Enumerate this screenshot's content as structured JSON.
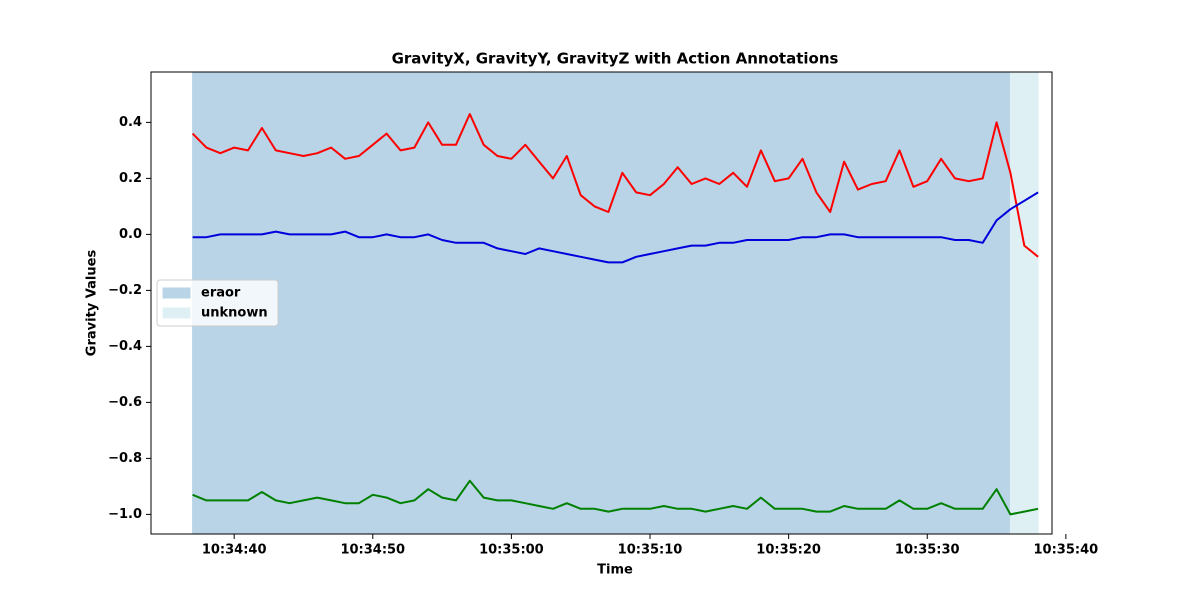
{
  "chart_data": {
    "type": "line",
    "title": "GravityX, GravityY, GravityZ with Action Annotations",
    "xlabel": "Time",
    "ylabel": "Gravity Values",
    "x": [
      "10:34:37",
      "10:34:38",
      "10:34:39",
      "10:34:40",
      "10:34:41",
      "10:34:42",
      "10:34:43",
      "10:34:44",
      "10:34:45",
      "10:34:46",
      "10:34:47",
      "10:34:48",
      "10:34:49",
      "10:34:50",
      "10:34:51",
      "10:34:52",
      "10:34:53",
      "10:34:54",
      "10:34:55",
      "10:34:56",
      "10:34:57",
      "10:34:58",
      "10:34:59",
      "10:35:00",
      "10:35:01",
      "10:35:02",
      "10:35:03",
      "10:35:04",
      "10:35:05",
      "10:35:06",
      "10:35:07",
      "10:35:08",
      "10:35:09",
      "10:35:10",
      "10:35:11",
      "10:35:12",
      "10:35:13",
      "10:35:14",
      "10:35:15",
      "10:35:16",
      "10:35:17",
      "10:35:18",
      "10:35:19",
      "10:35:20",
      "10:35:21",
      "10:35:22",
      "10:35:23",
      "10:35:24",
      "10:35:25",
      "10:35:26",
      "10:35:27",
      "10:35:28",
      "10:35:29",
      "10:35:30",
      "10:35:31",
      "10:35:32",
      "10:35:33",
      "10:35:34",
      "10:35:35",
      "10:35:36",
      "10:35:37",
      "10:35:38"
    ],
    "series": [
      {
        "color": "#ff0000",
        "values": [
          0.36,
          0.31,
          0.29,
          0.31,
          0.3,
          0.38,
          0.3,
          0.29,
          0.28,
          0.29,
          0.31,
          0.27,
          0.28,
          0.32,
          0.36,
          0.3,
          0.31,
          0.4,
          0.32,
          0.32,
          0.43,
          0.32,
          0.28,
          0.27,
          0.32,
          0.26,
          0.2,
          0.28,
          0.14,
          0.1,
          0.08,
          0.22,
          0.15,
          0.14,
          0.18,
          0.24,
          0.18,
          0.2,
          0.18,
          0.22,
          0.17,
          0.3,
          0.19,
          0.2,
          0.27,
          0.15,
          0.08,
          0.26,
          0.16,
          0.18,
          0.19,
          0.3,
          0.17,
          0.19,
          0.27,
          0.2,
          0.19,
          0.2,
          0.4,
          0.22,
          -0.04,
          -0.08
        ]
      },
      {
        "color": "#0000dd",
        "values": [
          -0.01,
          -0.01,
          0.0,
          0.0,
          0.0,
          0.0,
          0.01,
          0.0,
          0.0,
          0.0,
          0.0,
          0.01,
          -0.01,
          -0.01,
          0.0,
          -0.01,
          -0.01,
          0.0,
          -0.02,
          -0.03,
          -0.03,
          -0.03,
          -0.05,
          -0.06,
          -0.07,
          -0.05,
          -0.06,
          -0.07,
          -0.08,
          -0.09,
          -0.1,
          -0.1,
          -0.08,
          -0.07,
          -0.06,
          -0.05,
          -0.04,
          -0.04,
          -0.03,
          -0.03,
          -0.02,
          -0.02,
          -0.02,
          -0.02,
          -0.01,
          -0.01,
          0.0,
          0.0,
          -0.01,
          -0.01,
          -0.01,
          -0.01,
          -0.01,
          -0.01,
          -0.01,
          -0.02,
          -0.02,
          -0.03,
          0.05,
          0.09,
          0.12,
          0.15
        ]
      },
      {
        "color": "#008000",
        "values": [
          -0.93,
          -0.95,
          -0.95,
          -0.95,
          -0.95,
          -0.92,
          -0.95,
          -0.96,
          -0.95,
          -0.94,
          -0.95,
          -0.96,
          -0.96,
          -0.93,
          -0.94,
          -0.96,
          -0.95,
          -0.91,
          -0.94,
          -0.95,
          -0.88,
          -0.94,
          -0.95,
          -0.95,
          -0.96,
          -0.97,
          -0.98,
          -0.96,
          -0.98,
          -0.98,
          -0.99,
          -0.98,
          -0.98,
          -0.98,
          -0.97,
          -0.98,
          -0.98,
          -0.99,
          -0.98,
          -0.97,
          -0.98,
          -0.94,
          -0.98,
          -0.98,
          -0.98,
          -0.99,
          -0.99,
          -0.97,
          -0.98,
          -0.98,
          -0.98,
          -0.95,
          -0.98,
          -0.98,
          -0.96,
          -0.98,
          -0.98,
          -0.98,
          -0.91,
          -1.0,
          -0.99,
          -0.98
        ]
      }
    ],
    "spans": [
      {
        "name": "eraor",
        "color": "#b8d4e6",
        "start": "10:34:37",
        "end": "10:35:36"
      },
      {
        "name": "unknown",
        "color": "#dff0f5",
        "start": "10:35:36",
        "end": "10:35:38"
      }
    ],
    "legend": "center left",
    "xlim": [
      "10:34:34",
      "10:35:39"
    ],
    "xticks": [
      "10:34:40",
      "10:34:50",
      "10:35:00",
      "10:35:10",
      "10:35:20",
      "10:35:30",
      "10:35:40"
    ],
    "ylim": [
      -1.07,
      0.58
    ],
    "yticks": [
      {
        "value": -1.0,
        "label": "−1.0"
      },
      {
        "value": -0.8,
        "label": "−0.8"
      },
      {
        "value": -0.6,
        "label": "−0.6"
      },
      {
        "value": -0.4,
        "label": "−0.4"
      },
      {
        "value": -0.2,
        "label": "−0.2"
      },
      {
        "value": 0,
        "label": "0.0"
      },
      0.2,
      0.4
    ],
    "grid": false
  }
}
